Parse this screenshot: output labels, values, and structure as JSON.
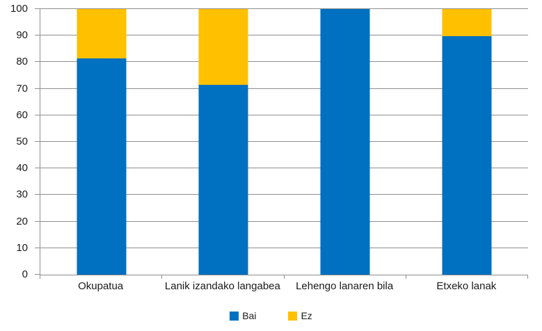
{
  "chart_data": {
    "type": "bar",
    "stacked": true,
    "title": "",
    "xlabel": "",
    "ylabel": "",
    "categories": [
      "Okupatua",
      "Lanik izandako langabea",
      "Lehengo lanaren bila",
      "Etxeko lanak"
    ],
    "series": [
      {
        "name": "Bai",
        "color": "#0070C0",
        "values": [
          81.5,
          71.5,
          100,
          89.7
        ]
      },
      {
        "name": "Ez",
        "color": "#FFC000",
        "values": [
          18.5,
          28.5,
          0,
          10.3
        ]
      }
    ],
    "ylim": [
      0,
      100
    ],
    "ytick_step": 10,
    "ytick_labels": [
      "0",
      "10",
      "20",
      "30",
      "40",
      "50",
      "60",
      "70",
      "80",
      "90",
      "100"
    ],
    "grid": true,
    "legend_position": "bottom",
    "colors": {
      "gridline": "#8E8E8E",
      "axis": "#8E8E8E",
      "text": "#1A1A1A",
      "background": "#FFFFFF"
    }
  }
}
